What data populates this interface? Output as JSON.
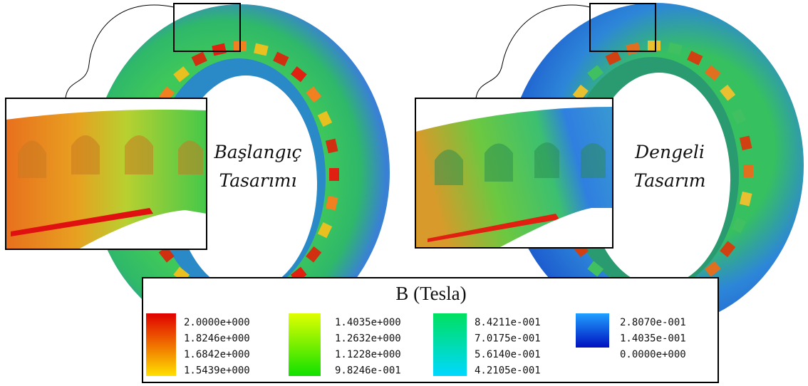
{
  "labels": {
    "left": [
      "Başlangıç",
      "Tasarımı"
    ],
    "right": [
      "Dengeli",
      "Tasarım"
    ]
  },
  "legend": {
    "title": "B (Tesla)",
    "columns": [
      [
        "2.0000e+000",
        "1.8246e+000",
        "1.6842e+000",
        "1.5439e+000"
      ],
      [
        "1.4035e+000",
        "1.2632e+000",
        "1.1228e+000",
        "9.8246e-001"
      ],
      [
        "8.4211e-001",
        "7.0175e-001",
        "5.6140e-001",
        "4.2105e-001"
      ],
      [
        "2.8070e-001",
        "1.4035e-001",
        "0.0000e+000"
      ]
    ]
  }
}
